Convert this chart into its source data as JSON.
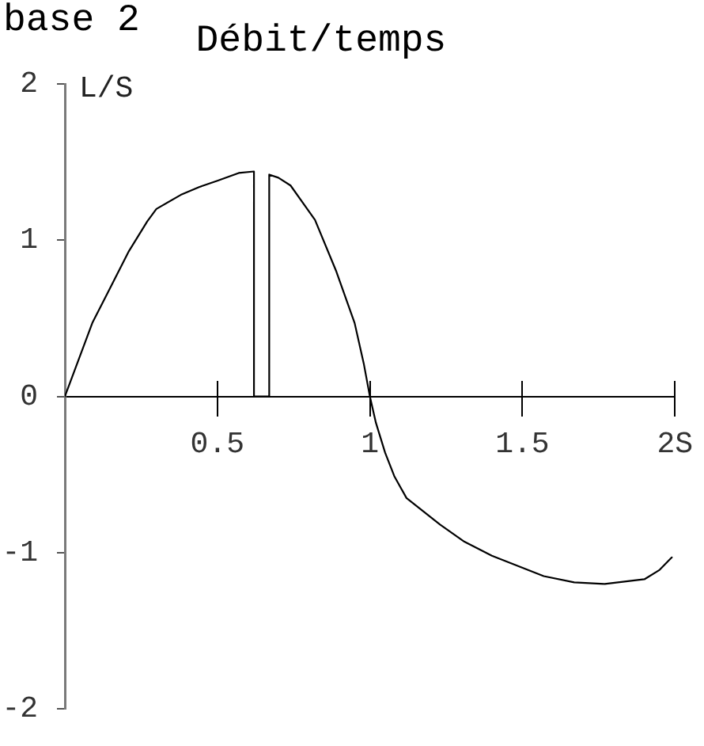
{
  "chart_data": {
    "type": "line",
    "title": "Débit/temps",
    "ylabel": "L/S",
    "annotations": [
      "base 2"
    ],
    "x": [
      0,
      0.09,
      0.15,
      0.21,
      0.27,
      0.3,
      0.38,
      0.44,
      0.5,
      0.57,
      0.62,
      0.62,
      0.67,
      0.67,
      0.7,
      0.74,
      0.82,
      0.89,
      0.95,
      0.98,
      1,
      1.02,
      1.05,
      1.08,
      1.12,
      1.23,
      1.31,
      1.4,
      1.57,
      1.67,
      1.77,
      1.9,
      1.95,
      1.99
    ],
    "series": [
      {
        "color": "#000000",
        "values": [
          0,
          0.47,
          0.7,
          0.93,
          1.12,
          1.2,
          1.29,
          1.34,
          1.38,
          1.43,
          1.44,
          0,
          0,
          1.42,
          1.4,
          1.35,
          1.13,
          0.8,
          0.47,
          0.21,
          0,
          -0.17,
          -0.36,
          -0.51,
          -0.65,
          -0.82,
          -0.93,
          -1.02,
          -1.15,
          -1.19,
          -1.2,
          -1.17,
          -1.11,
          -1.03
        ]
      }
    ],
    "xlim": [
      0,
      2
    ],
    "xticks": [
      0.5,
      1,
      1.5,
      {
        "value": 2,
        "label": "2S"
      }
    ],
    "ylim": [
      -2,
      2
    ],
    "yticks": [
      -2,
      -1,
      0,
      1,
      2
    ],
    "marker": "none"
  }
}
